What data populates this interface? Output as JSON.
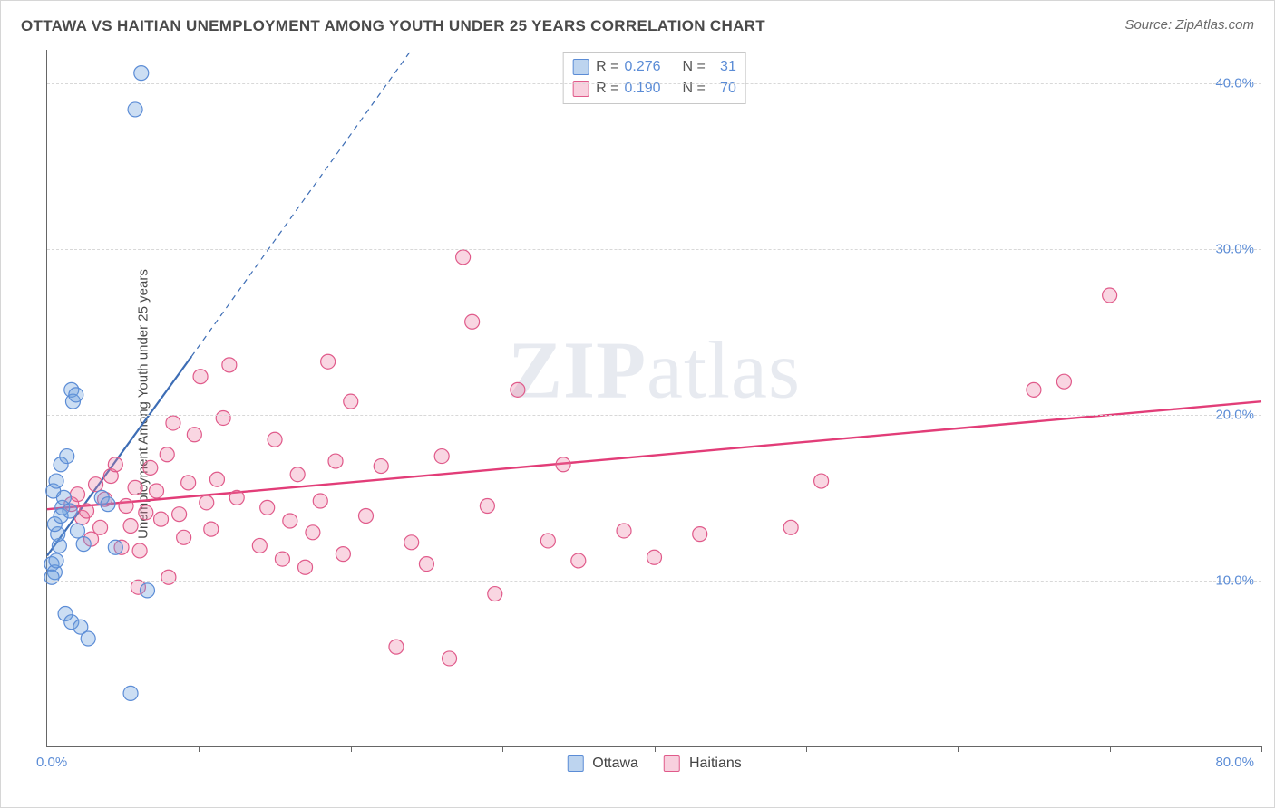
{
  "title": "OTTAWA VS HAITIAN UNEMPLOYMENT AMONG YOUTH UNDER 25 YEARS CORRELATION CHART",
  "source": "Source: ZipAtlas.com",
  "ylabel": "Unemployment Among Youth under 25 years",
  "watermark_a": "ZIP",
  "watermark_b": "atlas",
  "chart": {
    "type": "scatter",
    "xlim": [
      0,
      80
    ],
    "ylim": [
      0,
      42
    ],
    "y_gridlines": [
      10,
      20,
      30,
      40
    ],
    "y_tick_labels": [
      "10.0%",
      "20.0%",
      "30.0%",
      "40.0%"
    ],
    "x_tick_positions": [
      10,
      20,
      30,
      40,
      50,
      60,
      70,
      80
    ],
    "x_min_label": "0.0%",
    "x_max_label": "80.0%",
    "background_color": "#ffffff",
    "grid_color": "#d8d8d8",
    "marker_radius": 8,
    "marker_stroke_width": 1.2,
    "series": {
      "ottawa": {
        "label": "Ottawa",
        "R": "0.276",
        "N": "31",
        "color_fill": "rgba(108,160,220,0.35)",
        "color_stroke": "#5b8cd6",
        "trend": {
          "x1": 0,
          "y1": 11.5,
          "x2": 9.5,
          "y2": 23.5,
          "dash_x2": 24,
          "dash_y2": 42,
          "stroke": "#3d6db5",
          "width": 2.2
        },
        "points": [
          [
            0.3,
            11.0
          ],
          [
            0.5,
            10.5
          ],
          [
            0.6,
            11.2
          ],
          [
            0.8,
            12.1
          ],
          [
            0.7,
            12.8
          ],
          [
            0.5,
            13.4
          ],
          [
            0.9,
            13.9
          ],
          [
            1.0,
            14.4
          ],
          [
            1.1,
            15.0
          ],
          [
            0.4,
            15.4
          ],
          [
            0.6,
            16.0
          ],
          [
            0.9,
            17.0
          ],
          [
            1.3,
            17.5
          ],
          [
            0.3,
            10.2
          ],
          [
            1.6,
            21.5
          ],
          [
            1.7,
            20.8
          ],
          [
            1.9,
            21.2
          ],
          [
            1.5,
            14.2
          ],
          [
            2.0,
            13.0
          ],
          [
            2.4,
            12.2
          ],
          [
            3.6,
            15.0
          ],
          [
            4.0,
            14.6
          ],
          [
            4.5,
            12.0
          ],
          [
            6.6,
            9.4
          ],
          [
            1.2,
            8.0
          ],
          [
            1.6,
            7.5
          ],
          [
            2.2,
            7.2
          ],
          [
            2.7,
            6.5
          ],
          [
            5.5,
            3.2
          ],
          [
            5.8,
            38.4
          ],
          [
            6.2,
            40.6
          ]
        ]
      },
      "haitians": {
        "label": "Haitians",
        "R": "0.190",
        "N": "70",
        "color_fill": "rgba(235,120,160,0.30)",
        "color_stroke": "#e05a8a",
        "trend": {
          "x1": 0,
          "y1": 14.3,
          "x2": 80,
          "y2": 20.8,
          "stroke": "#e23d78",
          "width": 2.4
        },
        "points": [
          [
            1.6,
            14.6
          ],
          [
            2.0,
            15.2
          ],
          [
            2.3,
            13.8
          ],
          [
            2.6,
            14.2
          ],
          [
            2.9,
            12.5
          ],
          [
            3.2,
            15.8
          ],
          [
            3.5,
            13.2
          ],
          [
            3.8,
            14.9
          ],
          [
            4.2,
            16.3
          ],
          [
            4.5,
            17.0
          ],
          [
            4.9,
            12.0
          ],
          [
            5.2,
            14.5
          ],
          [
            5.5,
            13.3
          ],
          [
            5.8,
            15.6
          ],
          [
            6.1,
            11.8
          ],
          [
            6.5,
            14.1
          ],
          [
            6.8,
            16.8
          ],
          [
            7.2,
            15.4
          ],
          [
            7.5,
            13.7
          ],
          [
            7.9,
            17.6
          ],
          [
            8.3,
            19.5
          ],
          [
            8.7,
            14.0
          ],
          [
            9.0,
            12.6
          ],
          [
            9.3,
            15.9
          ],
          [
            9.7,
            18.8
          ],
          [
            10.1,
            22.3
          ],
          [
            10.5,
            14.7
          ],
          [
            10.8,
            13.1
          ],
          [
            11.2,
            16.1
          ],
          [
            11.6,
            19.8
          ],
          [
            12.0,
            23.0
          ],
          [
            12.5,
            15.0
          ],
          [
            8.0,
            10.2
          ],
          [
            6.0,
            9.6
          ],
          [
            14.0,
            12.1
          ],
          [
            14.5,
            14.4
          ],
          [
            15.0,
            18.5
          ],
          [
            15.5,
            11.3
          ],
          [
            16.0,
            13.6
          ],
          [
            16.5,
            16.4
          ],
          [
            17.0,
            10.8
          ],
          [
            17.5,
            12.9
          ],
          [
            18.0,
            14.8
          ],
          [
            18.5,
            23.2
          ],
          [
            19.0,
            17.2
          ],
          [
            19.5,
            11.6
          ],
          [
            20.0,
            20.8
          ],
          [
            21.0,
            13.9
          ],
          [
            22.0,
            16.9
          ],
          [
            23.0,
            6.0
          ],
          [
            24.0,
            12.3
          ],
          [
            25.0,
            11.0
          ],
          [
            26.0,
            17.5
          ],
          [
            27.4,
            29.5
          ],
          [
            28.0,
            25.6
          ],
          [
            29.0,
            14.5
          ],
          [
            29.5,
            9.2
          ],
          [
            26.5,
            5.3
          ],
          [
            31.0,
            21.5
          ],
          [
            33.0,
            12.4
          ],
          [
            34.0,
            17.0
          ],
          [
            35.0,
            11.2
          ],
          [
            38.0,
            13.0
          ],
          [
            40.0,
            11.4
          ],
          [
            43.0,
            12.8
          ],
          [
            49.0,
            13.2
          ],
          [
            51.0,
            16.0
          ],
          [
            65.0,
            21.5
          ],
          [
            67.0,
            22.0
          ],
          [
            70.0,
            27.2
          ]
        ]
      }
    }
  },
  "legend_top": {
    "rows": [
      {
        "swatch": "blue",
        "R_label": "R =",
        "R_val": "0.276",
        "N_label": "N =",
        "N_val": "31"
      },
      {
        "swatch": "pink",
        "R_label": "R =",
        "R_val": "0.190",
        "N_label": "N =",
        "N_val": "70"
      }
    ]
  },
  "legend_bottom": {
    "items": [
      {
        "swatch": "blue",
        "label": "Ottawa"
      },
      {
        "swatch": "pink",
        "label": "Haitians"
      }
    ]
  }
}
